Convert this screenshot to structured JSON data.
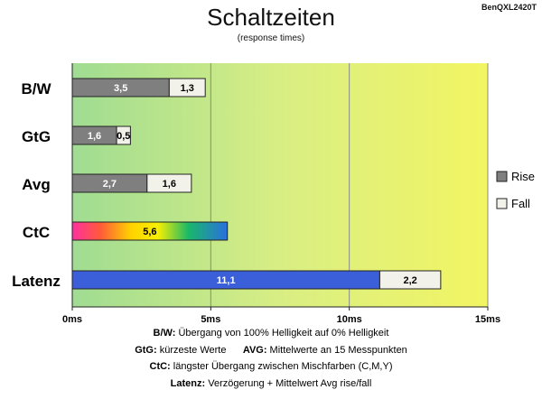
{
  "header": {
    "title": "Schaltzeiten",
    "subtitle": "(response times)",
    "model": "BenQXL2420T"
  },
  "chart_data": {
    "type": "bar",
    "orientation": "horizontal",
    "stacked": true,
    "categories": [
      "B/W",
      "GtG",
      "Avg",
      "CtC",
      "Latenz"
    ],
    "series": [
      {
        "name": "Rise",
        "values": [
          3.5,
          1.6,
          2.7,
          5.6,
          11.1
        ],
        "value_labels": [
          "3,5",
          "1,6",
          "2,7",
          "5,6",
          "11,1"
        ]
      },
      {
        "name": "Fall",
        "values": [
          1.3,
          0.5,
          1.6,
          null,
          2.2
        ],
        "value_labels": [
          "1,3",
          "0,5",
          "1,6",
          "",
          "2,2"
        ]
      }
    ],
    "xlim": [
      0,
      15
    ],
    "xticks": [
      0,
      5,
      10,
      15
    ],
    "xtick_labels": [
      "0ms",
      "5ms",
      "10ms",
      "15ms"
    ],
    "grid": true,
    "legend": {
      "position": "right",
      "entries": [
        "Rise",
        "Fall"
      ]
    },
    "colors": {
      "rise": "#7f7f7f",
      "fall": "#f2f2ea",
      "latenz_rise": "#3a5fd8",
      "background_left": "#9fdc92",
      "background_right": "#f3f562"
    }
  },
  "footnotes": [
    [
      {
        "b": "B/W:",
        "t": " Übergang von 100% Helligkeit auf 0% Helligkeit"
      }
    ],
    [
      {
        "b": "GtG:",
        "t": " kürzeste Werte"
      },
      {
        "b": "AVG:",
        "t": " Mittelwerte an 15 Messpunkten"
      }
    ],
    [
      {
        "b": "CtC:",
        "t": " längster Übergang zwischen Mischfarben (C,M,Y)"
      }
    ],
    [
      {
        "b": "Latenz:",
        "t": " Verzögerung + Mittelwert Avg rise/fall"
      }
    ]
  ]
}
